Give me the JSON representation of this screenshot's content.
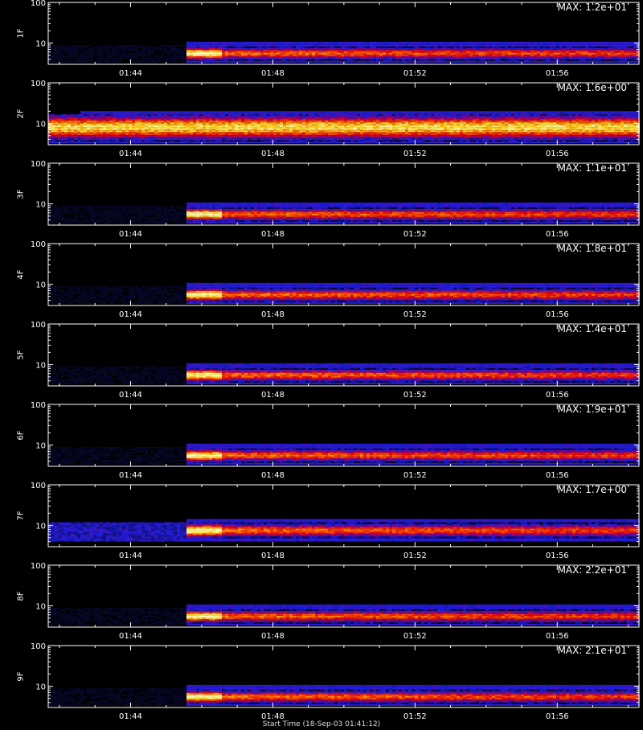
{
  "chart_data": [
    {
      "type": "heatmap",
      "ylabel": "1F",
      "max_label": "MAX: 1.2e+01",
      "ylim": [
        3,
        100
      ],
      "yscale": "log",
      "yticks": [
        "100",
        "10"
      ],
      "xticks": [
        "01:44",
        "01:48",
        "01:52",
        "01:56"
      ],
      "onset_time": "01:45:30",
      "band": {
        "center": 5.5,
        "low": 4,
        "high": 7.5,
        "peak": "bright-yellow-then-red"
      }
    },
    {
      "type": "heatmap",
      "ylabel": "2F",
      "max_label": "MAX: 1.6e+00",
      "ylim": [
        3,
        100
      ],
      "yscale": "log",
      "yticks": [
        "100",
        "10"
      ],
      "xticks": [
        "01:44",
        "01:48",
        "01:52",
        "01:56"
      ],
      "onset_time": "01:42:30",
      "band": {
        "center": 8,
        "low": 4,
        "high": 14,
        "peak": "yellow"
      }
    },
    {
      "type": "heatmap",
      "ylabel": "3F",
      "max_label": "MAX: 1.1e+01",
      "ylim": [
        3,
        100
      ],
      "yscale": "log",
      "yticks": [
        "100",
        "10"
      ],
      "xticks": [
        "01:44",
        "01:48",
        "01:52",
        "01:56"
      ],
      "onset_time": "01:45:30",
      "band": {
        "center": 5.5,
        "low": 4,
        "high": 7.5,
        "peak": "bright-yellow-then-red"
      }
    },
    {
      "type": "heatmap",
      "ylabel": "4F",
      "max_label": "MAX: 1.8e+01",
      "ylim": [
        3,
        100
      ],
      "yscale": "log",
      "yticks": [
        "100",
        "10"
      ],
      "xticks": [
        "01:44",
        "01:48",
        "01:52",
        "01:56"
      ],
      "onset_time": "01:45:30",
      "band": {
        "center": 5.5,
        "low": 4,
        "high": 7.5,
        "peak": "bright-yellow-then-red"
      }
    },
    {
      "type": "heatmap",
      "ylabel": "5F",
      "max_label": "MAX: 1.4e+01",
      "ylim": [
        3,
        100
      ],
      "yscale": "log",
      "yticks": [
        "100",
        "10"
      ],
      "xticks": [
        "01:44",
        "01:48",
        "01:52",
        "01:56"
      ],
      "onset_time": "01:45:30",
      "band": {
        "center": 5.5,
        "low": 4,
        "high": 7.5,
        "peak": "bright-yellow-then-red"
      }
    },
    {
      "type": "heatmap",
      "ylabel": "6F",
      "max_label": "MAX: 1.9e+01",
      "ylim": [
        3,
        100
      ],
      "yscale": "log",
      "yticks": [
        "100",
        "10"
      ],
      "xticks": [
        "01:44",
        "01:48",
        "01:52",
        "01:56"
      ],
      "onset_time": "01:45:30",
      "band": {
        "center": 5.5,
        "low": 4,
        "high": 7.5,
        "peak": "bright-yellow-then-red"
      }
    },
    {
      "type": "heatmap",
      "ylabel": "7F",
      "max_label": "MAX: 1.7e+00",
      "ylim": [
        3,
        100
      ],
      "yscale": "log",
      "yticks": [
        "100",
        "10"
      ],
      "xticks": [
        "01:44",
        "01:48",
        "01:52",
        "01:56"
      ],
      "onset_time": "01:45:30",
      "band": {
        "center": 7.5,
        "low": 5,
        "high": 10,
        "peak": "yellow-then-red"
      }
    },
    {
      "type": "heatmap",
      "ylabel": "8F",
      "max_label": "MAX: 2.2e+01",
      "ylim": [
        3,
        100
      ],
      "yscale": "log",
      "yticks": [
        "100",
        "10"
      ],
      "xticks": [
        "01:44",
        "01:48",
        "01:52",
        "01:56"
      ],
      "onset_time": "01:45:30",
      "band": {
        "center": 5.5,
        "low": 4,
        "high": 7.5,
        "peak": "bright-yellow-then-red"
      }
    },
    {
      "type": "heatmap",
      "ylabel": "9F",
      "max_label": "MAX: 2.1e+01",
      "ylim": [
        3,
        100
      ],
      "yscale": "log",
      "yticks": [
        "100",
        "10"
      ],
      "xticks": [
        "01:44",
        "01:48",
        "01:52",
        "01:56"
      ],
      "onset_time": "01:45:30",
      "band": {
        "center": 5.5,
        "low": 4,
        "high": 7.5,
        "peak": "bright-yellow-then-red"
      }
    }
  ],
  "footer": {
    "xlabel": "Start Time (18-Sep-03 01:41:12)"
  },
  "colors": {
    "background": "#000000",
    "axis": "#ffffff",
    "low": "#1a1aff",
    "mid": "#ff1a1a",
    "high": "#ffff66"
  }
}
